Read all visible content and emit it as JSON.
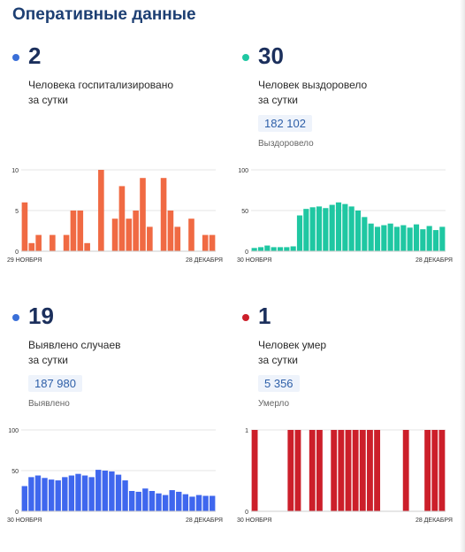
{
  "page": {
    "title": "Оперативные данные"
  },
  "panels": [
    {
      "number": "2",
      "desc_line1": "Человека госпитализировано",
      "desc_line2": "за сутки",
      "total": "",
      "total_label": "",
      "color": "#f06a43",
      "bullet_color": "#3a6fd8"
    },
    {
      "number": "30",
      "desc_line1": "Человек выздоровело",
      "desc_line2": "за сутки",
      "total": "182 102",
      "total_label": "Выздоровело",
      "color": "#1fc7a2",
      "bullet_color": "#1fc7a2"
    },
    {
      "number": "19",
      "desc_line1": "Выявлено случаев",
      "desc_line2": "за сутки",
      "total": "187 980",
      "total_label": "Выявлено",
      "color": "#3f67ee",
      "bullet_color": "#3a6fd8"
    },
    {
      "number": "1",
      "desc_line1": "Человек умер",
      "desc_line2": "за сутки",
      "total": "5 356",
      "total_label": "Умерло",
      "color": "#cc1f2a",
      "bullet_color": "#cc1f2a"
    }
  ],
  "chart_data": [
    {
      "type": "bar",
      "series_name": "Госпитализировано",
      "x_start_label": "29 НОЯБРЯ",
      "x_end_label": "28 ДЕКАБРЯ",
      "ylim": [
        0,
        10
      ],
      "yticks": [
        0,
        5,
        10
      ],
      "values": [
        6,
        1,
        2,
        0,
        2,
        0,
        2,
        5,
        5,
        1,
        0,
        10,
        0,
        4,
        8,
        4,
        5,
        9,
        3,
        0,
        9,
        5,
        3,
        0,
        4,
        0,
        2,
        2
      ]
    },
    {
      "type": "bar",
      "series_name": "Выздоровело",
      "x_start_label": "30 НОЯБРЯ",
      "x_end_label": "28 ДЕКАБРЯ",
      "ylim": [
        0,
        100
      ],
      "yticks": [
        0,
        50,
        100
      ],
      "values": [
        4,
        5,
        7,
        5,
        5,
        5,
        6,
        44,
        52,
        54,
        55,
        53,
        57,
        60,
        58,
        55,
        50,
        42,
        34,
        30,
        32,
        34,
        30,
        32,
        29,
        33,
        27,
        31,
        26,
        30
      ]
    },
    {
      "type": "bar",
      "series_name": "Выявлено",
      "x_start_label": "30 НОЯБРЯ",
      "x_end_label": "28 ДЕКАБРЯ",
      "ylim": [
        0,
        100
      ],
      "yticks": [
        0,
        50,
        100
      ],
      "values": [
        31,
        42,
        44,
        41,
        39,
        38,
        42,
        44,
        46,
        44,
        42,
        51,
        50,
        49,
        45,
        38,
        25,
        24,
        28,
        25,
        22,
        20,
        26,
        24,
        21,
        18,
        20,
        19,
        19
      ]
    },
    {
      "type": "bar",
      "series_name": "Умерло",
      "x_start_label": "30 НОЯБРЯ",
      "x_end_label": "28 ДЕКАБРЯ",
      "ylim": [
        0,
        1
      ],
      "yticks": [
        0,
        1
      ],
      "values": [
        1,
        0,
        0,
        0,
        0,
        1,
        1,
        0,
        1,
        1,
        0,
        1,
        1,
        1,
        1,
        1,
        1,
        1,
        0,
        0,
        0,
        1,
        0,
        0,
        1,
        1,
        1
      ]
    }
  ]
}
